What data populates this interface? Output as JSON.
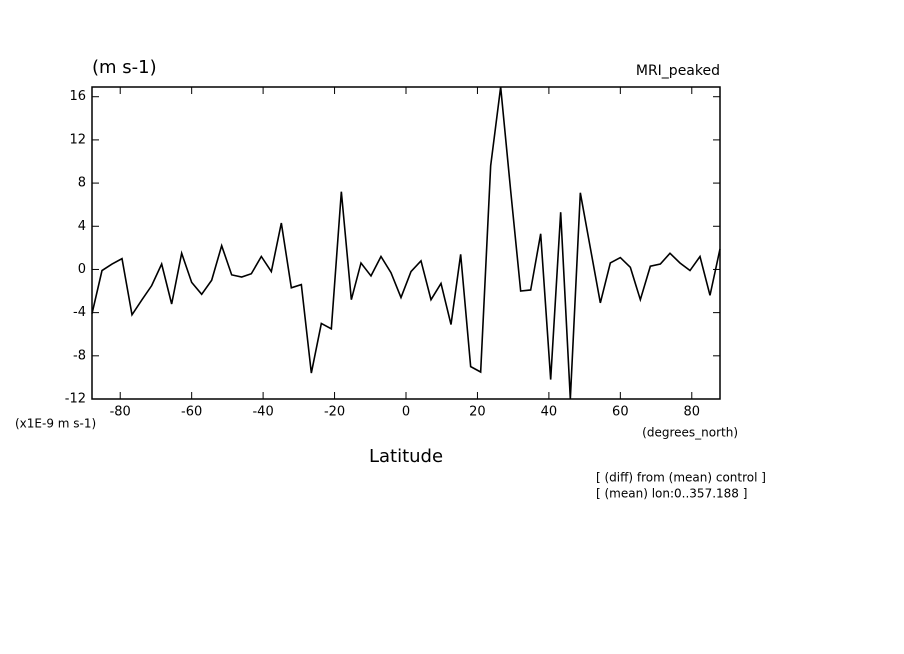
{
  "chart_data": {
    "type": "line",
    "title": "(m s-1)",
    "subtitle": "MRI_peaked",
    "y_label": "(x1E-9 m s-1)",
    "x_units": "(degrees_north)",
    "x_label": "Latitude",
    "annotations": [
      "[ (diff) from (mean) control ]",
      "[ (mean) lon:0..357.188 ]"
    ],
    "x": [
      -87.9,
      -85.1,
      -82.3,
      -79.5,
      -76.7,
      -73.9,
      -71.2,
      -68.4,
      -65.6,
      -62.8,
      -60.0,
      -57.2,
      -54.4,
      -51.6,
      -48.8,
      -46.0,
      -43.3,
      -40.5,
      -37.7,
      -34.9,
      -32.1,
      -29.3,
      -26.5,
      -23.7,
      -20.9,
      -18.1,
      -15.3,
      -12.6,
      -9.8,
      -7.0,
      -4.2,
      -1.4,
      1.4,
      4.2,
      7.0,
      9.8,
      12.6,
      15.3,
      18.1,
      20.9,
      23.7,
      26.5,
      29.3,
      32.1,
      34.9,
      37.7,
      40.5,
      43.3,
      46.0,
      48.8,
      51.6,
      54.4,
      57.2,
      60.0,
      62.8,
      65.6,
      68.4,
      71.2,
      73.9,
      76.7,
      79.5,
      82.3,
      85.1,
      87.9
    ],
    "series": [
      {
        "color": "#000000",
        "values": [
          -4.1,
          -0.1,
          0.5,
          1.0,
          -4.2,
          -2.8,
          -1.5,
          0.5,
          -3.2,
          1.5,
          -1.2,
          -2.3,
          -1.0,
          2.2,
          -0.5,
          -0.7,
          -0.4,
          1.2,
          -0.2,
          4.3,
          -1.7,
          -1.4,
          -9.6,
          -5.0,
          -5.5,
          7.2,
          -2.8,
          0.6,
          -0.6,
          1.2,
          -0.3,
          -2.6,
          -0.2,
          0.8,
          -2.8,
          -1.3,
          -5.1,
          1.4,
          -9.0,
          -9.5,
          9.6,
          16.9,
          7.3,
          -2.0,
          -1.9,
          3.3,
          -10.2,
          5.3,
          -12.0,
          7.1,
          2.0,
          -3.1,
          0.6,
          1.1,
          0.2,
          -2.8,
          0.3,
          0.5,
          1.5,
          0.6,
          -0.1,
          1.2,
          -2.4,
          1.9
        ]
      }
    ],
    "xlim": [
      -87.9,
      87.9
    ],
    "ylim": [
      -12,
      16.9
    ],
    "xticks": [
      -80,
      -60,
      -40,
      -20,
      0,
      20,
      40,
      60,
      80
    ],
    "yticks": [
      -12,
      -8,
      -4,
      0,
      4,
      8,
      12,
      16
    ],
    "grid": false
  }
}
